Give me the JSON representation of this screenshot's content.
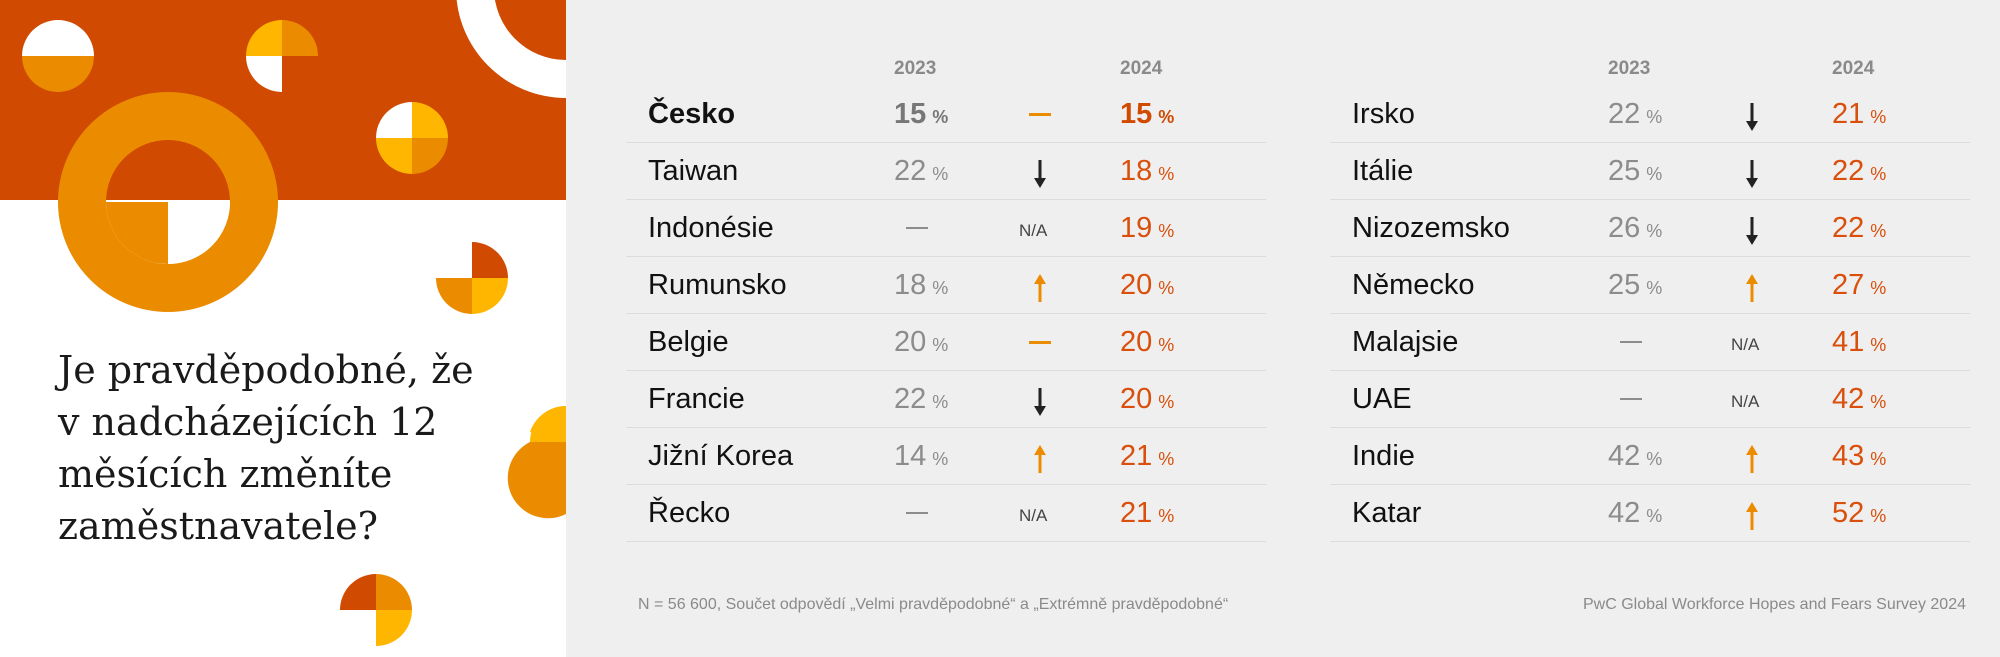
{
  "question": "Je pravděpodobné, že v nadcházejících 12 měsících změníte zaměstnavatele?",
  "footnote": "N = 56 600, Součet odpovědí „Velmi pravděpodobné“ a „Extrémně pravděpodobné“",
  "source": "PwC Global Workforce Hopes and Fears Survey 2024",
  "colors": {
    "orange_dark": "#d04a02",
    "orange": "#eb8c00",
    "yellow": "#ffb600",
    "grey_text": "#8c8c8c",
    "background": "#efefef"
  },
  "chart_data": {
    "type": "table",
    "columns": [
      "2023",
      "2024"
    ],
    "unit": "%",
    "na_label": "N/A",
    "tables": [
      {
        "rows": [
          {
            "country": "Česko",
            "v2023": 15,
            "v2024": 15,
            "trend": "same",
            "highlight": true
          },
          {
            "country": "Taiwan",
            "v2023": 22,
            "v2024": 18,
            "trend": "down"
          },
          {
            "country": "Indonésie",
            "v2023": null,
            "v2024": 19,
            "trend": "na"
          },
          {
            "country": "Rumunsko",
            "v2023": 18,
            "v2024": 20,
            "trend": "up"
          },
          {
            "country": "Belgie",
            "v2023": 20,
            "v2024": 20,
            "trend": "same"
          },
          {
            "country": "Francie",
            "v2023": 22,
            "v2024": 20,
            "trend": "down"
          },
          {
            "country": "Jižní Korea",
            "v2023": 14,
            "v2024": 21,
            "trend": "up"
          },
          {
            "country": "Řecko",
            "v2023": null,
            "v2024": 21,
            "trend": "na"
          }
        ]
      },
      {
        "rows": [
          {
            "country": "Irsko",
            "v2023": 22,
            "v2024": 21,
            "trend": "down"
          },
          {
            "country": "Itálie",
            "v2023": 25,
            "v2024": 22,
            "trend": "down"
          },
          {
            "country": "Nizozemsko",
            "v2023": 26,
            "v2024": 22,
            "trend": "down"
          },
          {
            "country": "Německo",
            "v2023": 25,
            "v2024": 27,
            "trend": "up"
          },
          {
            "country": "Malajsie",
            "v2023": null,
            "v2024": 41,
            "trend": "na"
          },
          {
            "country": "UAE",
            "v2023": null,
            "v2024": 42,
            "trend": "na"
          },
          {
            "country": "Indie",
            "v2023": 42,
            "v2024": 43,
            "trend": "up"
          },
          {
            "country": "Katar",
            "v2023": 42,
            "v2024": 52,
            "trend": "up"
          }
        ]
      }
    ]
  }
}
